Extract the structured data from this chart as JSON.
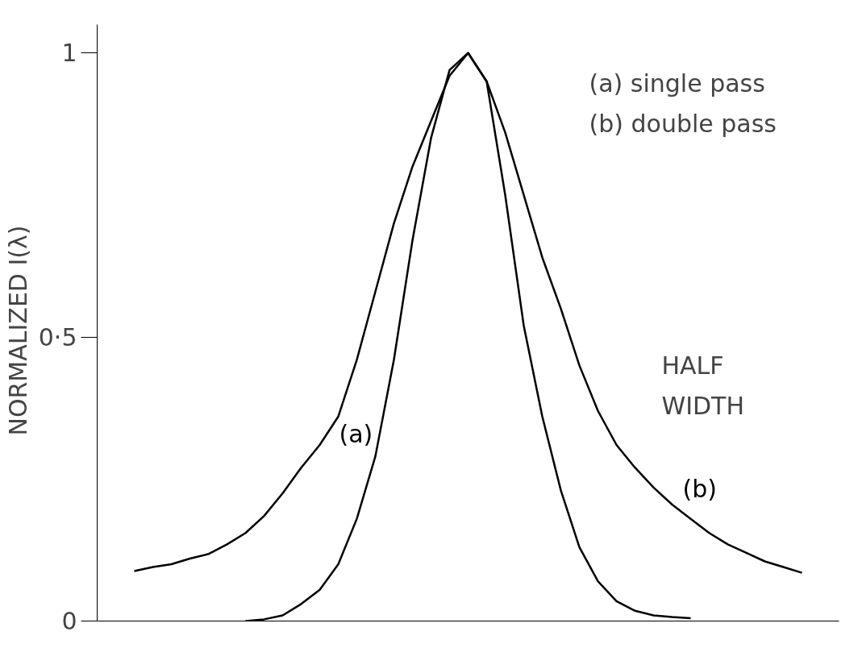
{
  "chart_data": {
    "type": "line",
    "ylabel": "NORMALIZED   I(λ)",
    "categories": [
      null,
      null,
      null,
      null,
      null,
      null,
      null,
      null,
      null,
      null,
      null,
      null,
      null,
      null,
      null,
      null,
      null,
      null,
      null,
      null,
      null,
      null,
      null,
      null,
      null,
      null,
      null,
      null,
      null,
      null,
      null,
      null,
      null,
      null,
      null,
      null,
      null
    ],
    "series": [
      {
        "name": "(a)",
        "color": "#000000",
        "values": [
          null,
          null,
          null,
          null,
          null,
          null,
          0,
          0.003,
          0.01,
          0.03,
          0.055,
          0.1,
          0.18,
          0.29,
          0.46,
          0.67,
          0.85,
          0.97,
          1,
          0.95,
          0.75,
          0.52,
          0.36,
          0.23,
          0.13,
          0.07,
          0.035,
          0.018,
          0.01,
          0.007,
          0.005,
          null,
          null,
          null,
          null,
          null,
          null
        ]
      },
      {
        "name": "(b)",
        "color": "#000000",
        "values": [
          0.088,
          0.095,
          0.1,
          0.11,
          0.118,
          0.135,
          0.155,
          0.185,
          0.225,
          0.27,
          0.31,
          0.36,
          0.46,
          0.58,
          0.7,
          0.8,
          0.88,
          0.96,
          1,
          0.95,
          0.86,
          0.75,
          0.64,
          0.55,
          0.45,
          0.37,
          0.31,
          0.27,
          0.235,
          0.205,
          0.18,
          0.155,
          0.135,
          0.12,
          0.105,
          0.095,
          0.085
        ]
      }
    ],
    "ylim": [
      0,
      1.05
    ],
    "yticks": [
      0,
      {
        "value": 0.5,
        "label": "0·5"
      },
      1
    ],
    "annotations": [
      "(a) single pass",
      "(b) double pass",
      "HALF WIDTH"
    ],
    "grid": false,
    "legend": false,
    "marker": "none",
    "line_style": "solid"
  }
}
